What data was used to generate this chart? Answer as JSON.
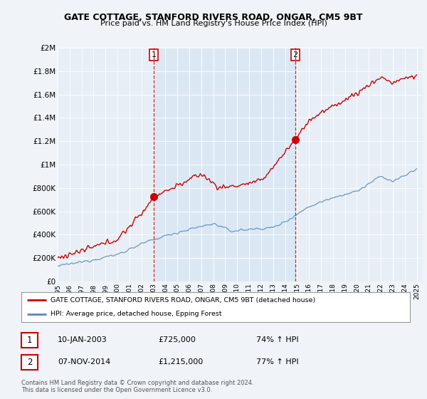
{
  "title": "GATE COTTAGE, STANFORD RIVERS ROAD, ONGAR, CM5 9BT",
  "subtitle": "Price paid vs. HM Land Registry's House Price Index (HPI)",
  "legend_line1": "GATE COTTAGE, STANFORD RIVERS ROAD, ONGAR, CM5 9BT (detached house)",
  "legend_line2": "HPI: Average price, detached house, Epping Forest",
  "sale1_date": "10-JAN-2003",
  "sale1_price": "£725,000",
  "sale1_hpi": "74% ↑ HPI",
  "sale1_year": 2003.03,
  "sale1_value": 725000,
  "sale2_date": "07-NOV-2014",
  "sale2_price": "£1,215,000",
  "sale2_hpi": "77% ↑ HPI",
  "sale2_year": 2014.85,
  "sale2_value": 1215000,
  "footnote1": "Contains HM Land Registry data © Crown copyright and database right 2024.",
  "footnote2": "This data is licensed under the Open Government Licence v3.0.",
  "red_color": "#cc0000",
  "blue_color": "#5588bb",
  "blue_fill": "#c8d8ee",
  "shaded_fill": "#d0e4f4",
  "background_color": "#f0f4f8",
  "plot_bg_color": "#e8eef5",
  "ylim": [
    0,
    2000000
  ],
  "xlim_start": 1995.0,
  "xlim_end": 2025.5
}
